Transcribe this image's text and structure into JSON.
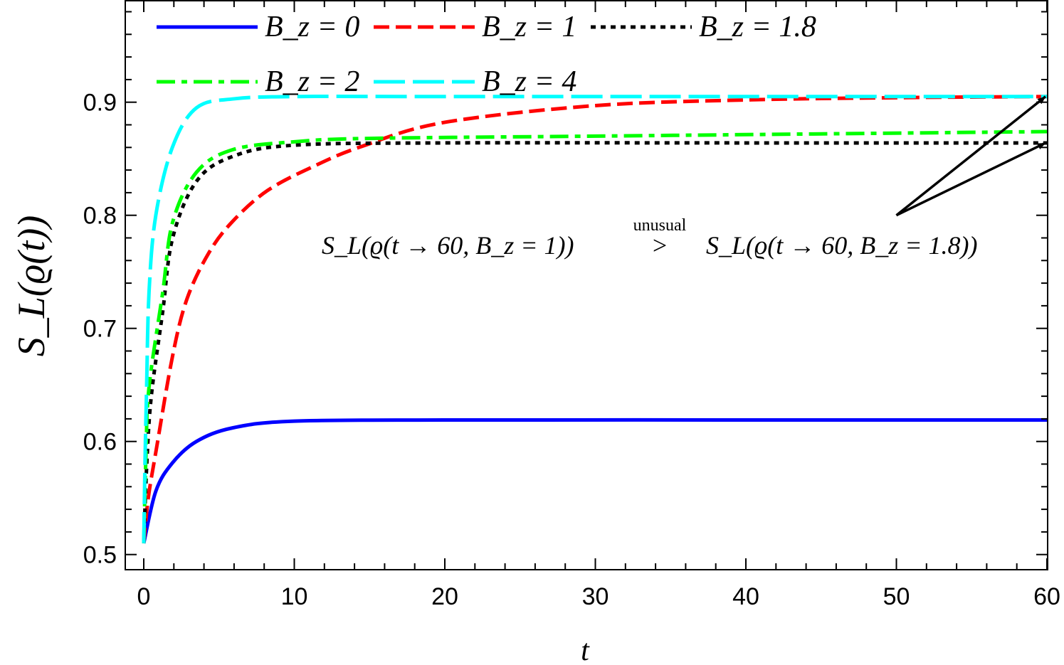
{
  "chart_data": {
    "type": "line",
    "title": "",
    "xlabel": "t",
    "ylabel": "S_L(ϱ(t))",
    "xlim": [
      -1.2,
      60
    ],
    "ylim": [
      0.489,
      0.991
    ],
    "xticks": [
      0,
      10,
      20,
      30,
      40,
      50,
      60
    ],
    "yticks": [
      0.5,
      0.6,
      0.7,
      0.8,
      0.9
    ],
    "grid": false,
    "legend_position": "top",
    "series": [
      {
        "name": "B_z = 0",
        "color": "#0000ff",
        "style": "solid",
        "x": [
          0,
          0.8,
          1.9,
          3.5,
          5.9,
          10,
          20,
          40,
          60
        ],
        "y": [
          0.51,
          0.556,
          0.581,
          0.6,
          0.612,
          0.618,
          0.619,
          0.619,
          0.619
        ]
      },
      {
        "name": "B_z = 1",
        "color": "#ff0000",
        "style": "dashed",
        "x": [
          0,
          0.3,
          0.82,
          1.92,
          2.87,
          4.29,
          5.86,
          8.23,
          11.4,
          14.5,
          19.9,
          30,
          40,
          50,
          60
        ],
        "y": [
          0.51,
          0.55,
          0.592,
          0.676,
          0.726,
          0.766,
          0.794,
          0.822,
          0.844,
          0.861,
          0.882,
          0.897,
          0.902,
          0.904,
          0.905
        ]
      },
      {
        "name": "B_z = 1.8",
        "color": "#000000",
        "style": "dotted",
        "x": [
          0,
          0.2,
          0.5,
          1.26,
          1.92,
          3.5,
          5.9,
          10,
          20,
          40,
          60
        ],
        "y": [
          0.51,
          0.58,
          0.64,
          0.715,
          0.78,
          0.83,
          0.852,
          0.862,
          0.864,
          0.864,
          0.864
        ]
      },
      {
        "name": "B_z = 2",
        "color": "#00ff00",
        "style": "dash-dot",
        "x": [
          0,
          0.15,
          0.35,
          1.26,
          1.92,
          3.5,
          5.9,
          10,
          15,
          30,
          45,
          60
        ],
        "y": [
          0.51,
          0.59,
          0.648,
          0.732,
          0.794,
          0.838,
          0.858,
          0.865,
          0.868,
          0.87,
          0.872,
          0.874
        ]
      },
      {
        "name": "B_z = 4",
        "color": "#00ffff",
        "style": "long-dash",
        "x": [
          0,
          0.08,
          0.19,
          0.35,
          0.8,
          1.9,
          3.5,
          6,
          10,
          20,
          60
        ],
        "y": [
          0.51,
          0.58,
          0.648,
          0.732,
          0.8,
          0.86,
          0.895,
          0.903,
          0.905,
          0.905,
          0.905
        ]
      }
    ],
    "annotation": {
      "left": "S_L(ϱ(t → 60, B_z = 1))",
      "relation_label": "unusual",
      "relation": ">",
      "right": "S_L(ϱ(t → 60, B_z = 1.8))",
      "arrow_tail": {
        "t": 50,
        "value": 0.8
      },
      "arrow_heads": [
        {
          "t": 60,
          "value": 0.905
        },
        {
          "t": 60,
          "value": 0.864
        }
      ]
    }
  }
}
